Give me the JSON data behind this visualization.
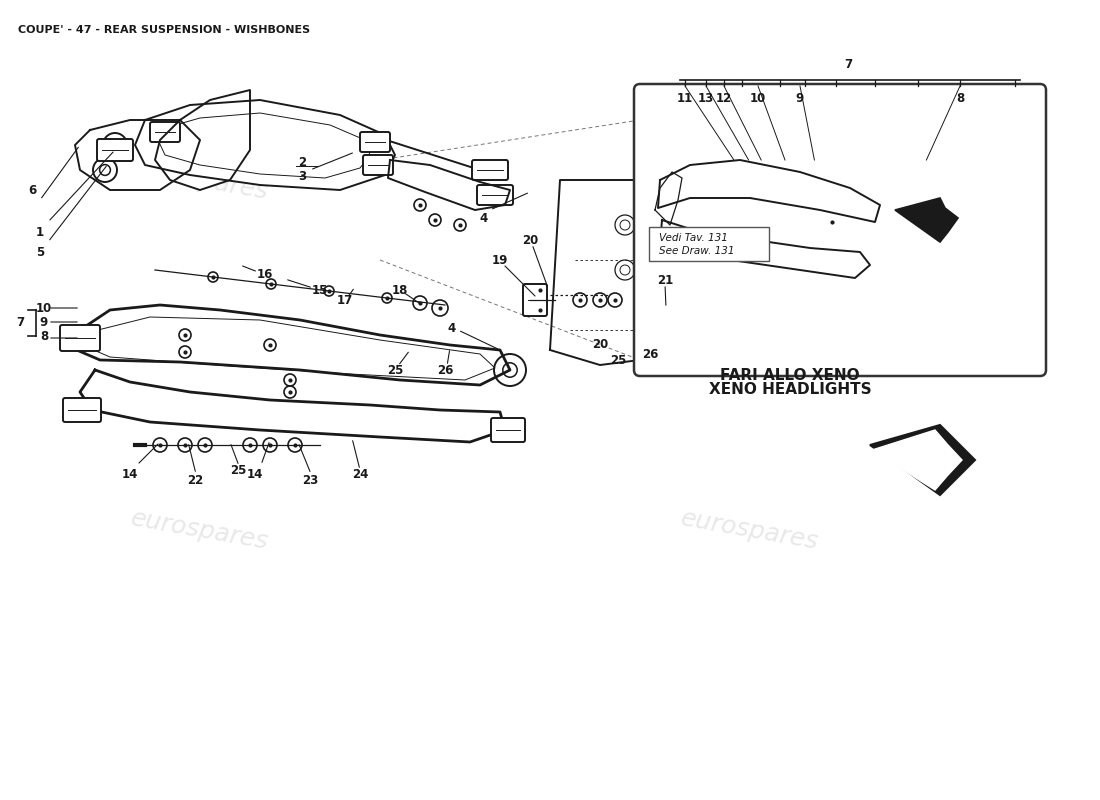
{
  "title": "COUPE' - 47 - REAR SUSPENSION - WISHBONES",
  "title_fontsize": 8,
  "bg_color": "#ffffff",
  "fg_color": "#1a1a1a",
  "watermark": "eurospares",
  "xeno_label_line1": "FARI ALLO XENO",
  "xeno_label_line2": "XENO HEADLIGHTS",
  "vedi_line1": "Vedi Tav. 131",
  "vedi_line2": "See Draw. 131"
}
